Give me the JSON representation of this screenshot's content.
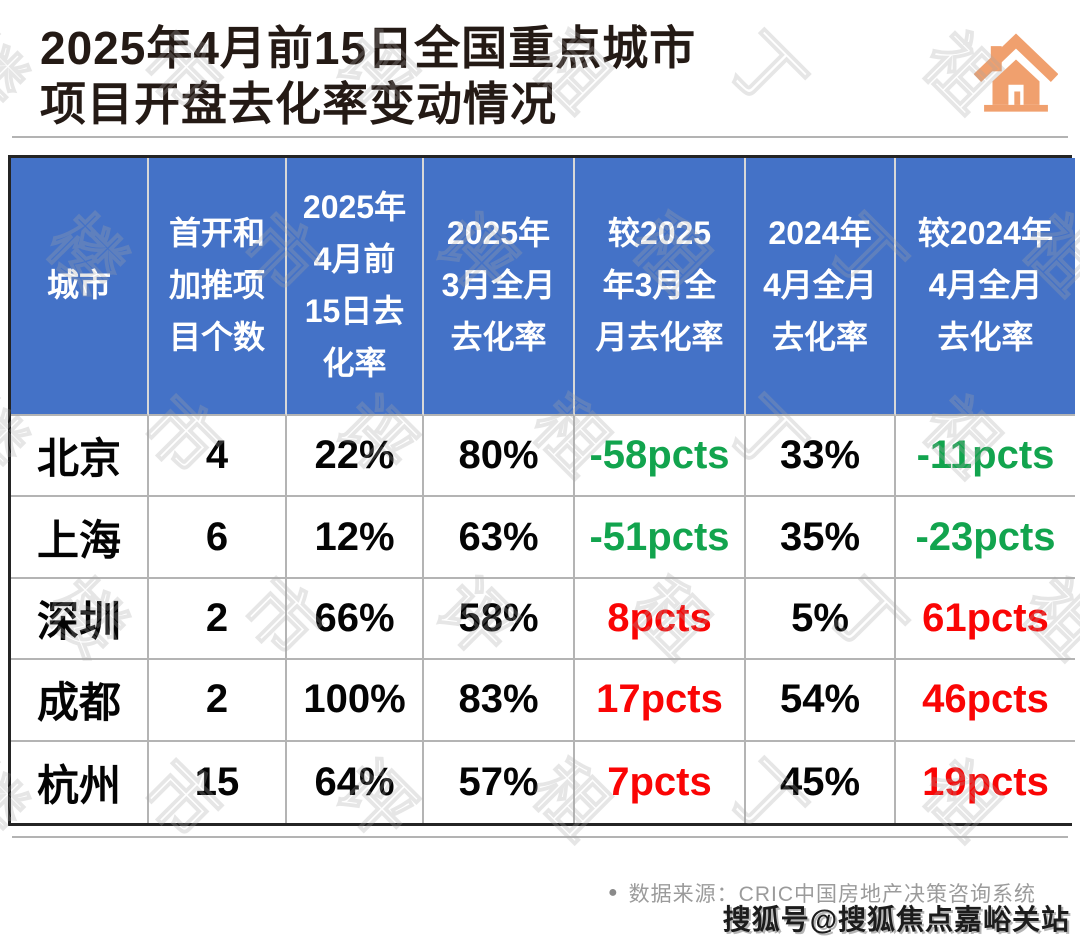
{
  "title": {
    "line1": "2025年4月前15日全国重点城市",
    "line2": "项目开盘去化率变动情况"
  },
  "colors": {
    "header_bg": "#4472C7",
    "negative_green": "#12A44E",
    "positive_red": "#FA0505",
    "title_text": "#241A15",
    "house_orange": "#F0A06E",
    "grid_line": "#B4B4B4",
    "source_gray": "#9B9B9B"
  },
  "table": {
    "header": [
      "城市",
      "首开和\n加推项\n目个数",
      "2025年\n4月前\n15日去\n化率",
      "2025年\n3月全月\n去化率",
      "较2025\n年3月全\n月去化率",
      "2024年\n4月全月\n去化率",
      "较2024年\n4月全月\n去化率"
    ],
    "rows": [
      {
        "cells": [
          "北京",
          "4",
          "22%",
          "80%",
          "-58pcts",
          "33%",
          "-11pcts"
        ]
      },
      {
        "cells": [
          "上海",
          "6",
          "12%",
          "63%",
          "-51pcts",
          "35%",
          "-23pcts"
        ]
      },
      {
        "cells": [
          "深圳",
          "2",
          "66%",
          "58%",
          "8pcts",
          "5%",
          "61pcts"
        ]
      },
      {
        "cells": [
          "成都",
          "2",
          "100%",
          "83%",
          "17pcts",
          "54%",
          "46pcts"
        ]
      },
      {
        "cells": [
          "杭州",
          "15",
          "64%",
          "57%",
          "7pcts",
          "45%",
          "19pcts"
        ]
      }
    ]
  },
  "footer": {
    "bullet": "●",
    "source": "数据来源：CRIC中国房地产决策咨询系统",
    "watermark": "搜狐号@搜狐焦点嘉峪关站"
  },
  "background_watermark": {
    "characters": "楼市评租丁祖"
  },
  "chart_data": {
    "type": "table",
    "title": "2025年4月前15日全国重点城市项目开盘去化率变动情况",
    "columns": [
      "城市",
      "首开和加推项目个数",
      "2025年4月前15日去化率",
      "2025年3月全月去化率",
      "较2025年3月全月去化率",
      "2024年4月全月去化率",
      "较2024年4月全月去化率"
    ],
    "rows": [
      [
        "北京",
        4,
        "22%",
        "80%",
        "-58pcts",
        "33%",
        "-11pcts"
      ],
      [
        "上海",
        6,
        "12%",
        "63%",
        "-51pcts",
        "35%",
        "-23pcts"
      ],
      [
        "深圳",
        2,
        "66%",
        "58%",
        "8pcts",
        "5%",
        "61pcts"
      ],
      [
        "成都",
        2,
        "100%",
        "83%",
        "17pcts",
        "54%",
        "46pcts"
      ],
      [
        "杭州",
        15,
        "64%",
        "57%",
        "7pcts",
        "45%",
        "19pcts"
      ]
    ],
    "value_color_rule": "negative pcts rendered green, positive pcts rendered red",
    "source": "CRIC中国房地产决策咨询系统"
  }
}
